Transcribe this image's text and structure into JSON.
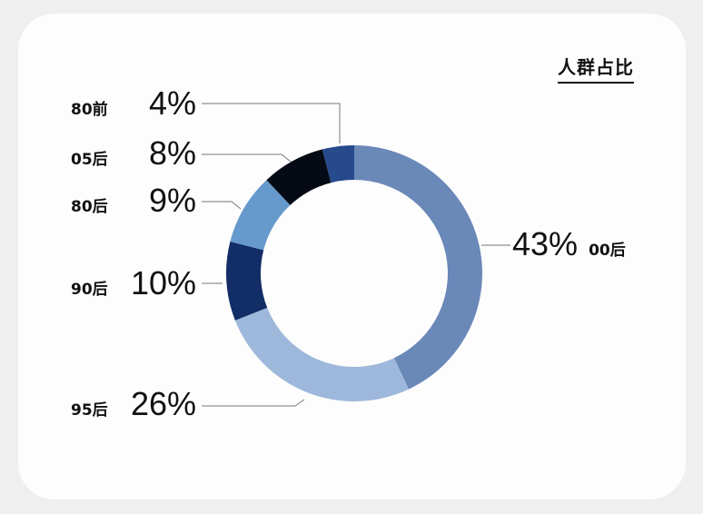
{
  "chart_data": {
    "type": "pie",
    "donut": true,
    "title": "人群占比",
    "start": "top",
    "direction": "clockwise",
    "slices": [
      {
        "label": "00后",
        "value": 43,
        "display": "43%",
        "color": "#6a88b8"
      },
      {
        "label": "95后",
        "value": 26,
        "display": "26%",
        "color": "#9db8da"
      },
      {
        "label": "90后",
        "value": 10,
        "display": "10%",
        "color": "#132d66"
      },
      {
        "label": "80后",
        "value": 9,
        "display": "9%",
        "color": "#6699cc"
      },
      {
        "label": "05后",
        "value": 8,
        "display": "8%",
        "color": "#050a14"
      },
      {
        "label": "80前",
        "value": 4,
        "display": "4%",
        "color": "#264a8c"
      }
    ]
  }
}
